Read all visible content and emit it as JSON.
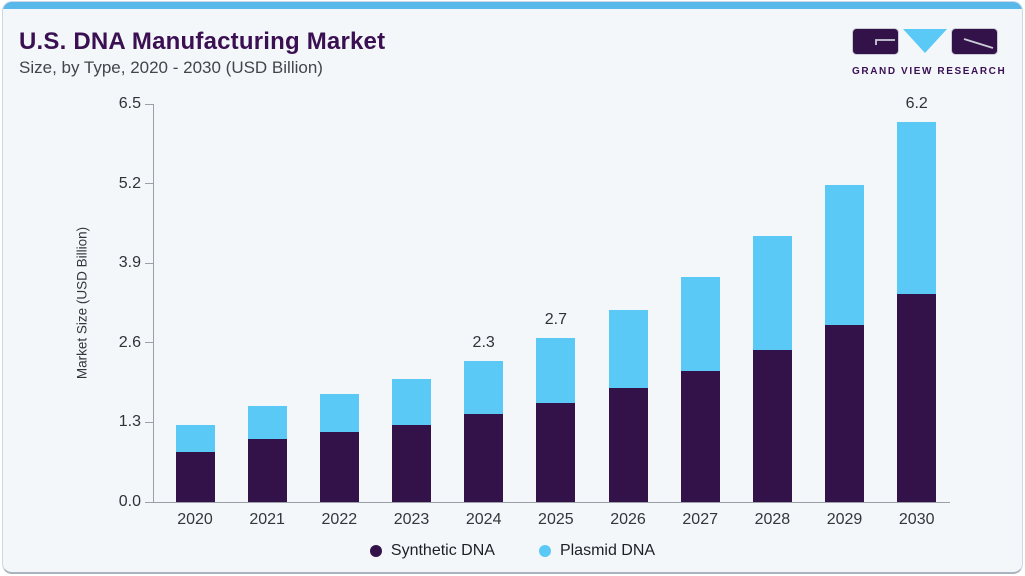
{
  "header": {
    "title": "U.S. DNA Manufacturing Market",
    "subtitle": "Size, by Type, 2020 - 2030 (USD Billion)"
  },
  "logo": {
    "text": "GRAND VIEW RESEARCH",
    "mark_purple": "#33124a",
    "mark_blue": "#5bc9f5"
  },
  "colors": {
    "card_background": "#f3f7fa",
    "accent_bar": "#57b8e9",
    "title_purple": "#3b1053",
    "axis_gray": "#9aa0a6"
  },
  "chart_data": {
    "type": "bar",
    "stacked": true,
    "title": "U.S. DNA Manufacturing Market Size, by Type, 2020 - 2030 (USD Billion)",
    "xlabel": "",
    "ylabel": "Market Size (USD Billion)",
    "ylim": [
      0,
      6.5
    ],
    "grid": false,
    "legend_position": "bottom",
    "categories": [
      "2020",
      "2021",
      "2022",
      "2023",
      "2024",
      "2025",
      "2026",
      "2027",
      "2028",
      "2029",
      "2030"
    ],
    "series": [
      {
        "name": "Synthetic DNA",
        "color": "#33124a",
        "values": [
          0.82,
          1.03,
          1.14,
          1.26,
          1.43,
          1.62,
          1.87,
          2.14,
          2.49,
          2.89,
          3.4
        ]
      },
      {
        "name": "Plasmid DNA",
        "color": "#5bc9f5",
        "values": [
          0.43,
          0.54,
          0.62,
          0.75,
          0.87,
          1.06,
          1.27,
          1.54,
          1.86,
          2.28,
          2.8
        ]
      }
    ],
    "totals": [
      1.25,
      1.57,
      1.76,
      2.01,
      2.3,
      2.68,
      3.14,
      3.68,
      4.35,
      5.17,
      6.2
    ],
    "annotations": [
      null,
      null,
      null,
      null,
      "2.3",
      "2.7",
      null,
      null,
      null,
      null,
      "6.2"
    ],
    "ytick_values": [
      0,
      1.3,
      2.6,
      3.9,
      5.2,
      6.5
    ],
    "ytick_labels": [
      "0.0",
      "1.3",
      "2.6",
      "3.9",
      "5.2",
      "6.5"
    ]
  }
}
